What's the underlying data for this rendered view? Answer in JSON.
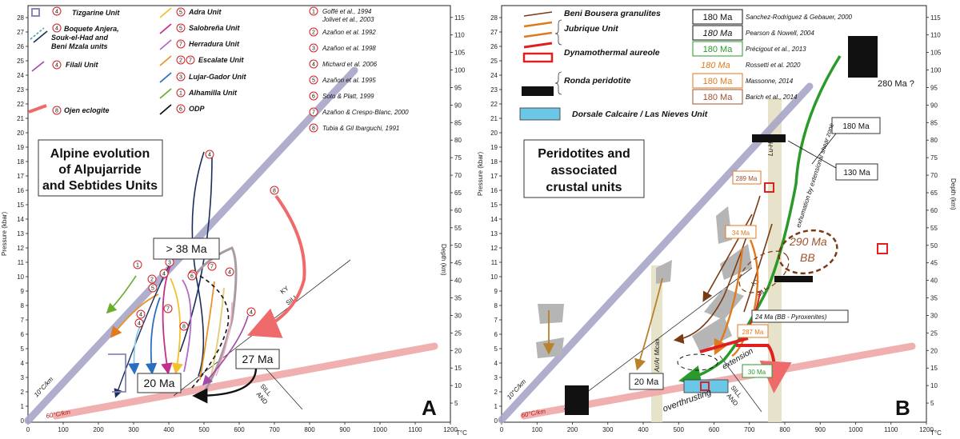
{
  "panel_a": {
    "letter": "A",
    "title_lines": [
      "Alpine evolution",
      "of Alpujarride",
      "and Sebtides Units"
    ],
    "legend": [
      {
        "num": "4",
        "label": "Tizgarine Unit",
        "color": "#8a86b8"
      },
      {
        "num": "4",
        "label": "Boquete Anjera, Souk-el-Had and Beni Mzala units",
        "color": "#4aa3a0"
      },
      {
        "num": "4",
        "label": "Filali Unit",
        "color": "#a24aa8"
      },
      {
        "num": "8",
        "label": "Ojen eclogite",
        "color": "#ef6b6b"
      },
      {
        "num": "5",
        "label": "Adra Unit",
        "color": "#f2c12e"
      },
      {
        "num": "5",
        "label": "Salobreña Unit",
        "color": "#c1308a"
      },
      {
        "num": "7",
        "label": "Herradura Unit",
        "color": "#b06ac9"
      },
      {
        "num": "2",
        "num2": "7",
        "label": "Escalate Unit",
        "color": "#e8952a"
      },
      {
        "num": "3",
        "label": "Lujar-Gador Unit",
        "color": "#2a6fbf"
      },
      {
        "num": "1",
        "label": "Alhamilla Unit",
        "color": "#6aae2e"
      },
      {
        "num": "6",
        "label": "ODP",
        "color": "#111111"
      }
    ],
    "refs": [
      {
        "num": "1",
        "text": "Goffé et al., 1994",
        "text2": "Jolivet et al., 2003"
      },
      {
        "num": "2",
        "text": "Azañon et al. 1992"
      },
      {
        "num": "3",
        "text": "Azañon et al. 1998"
      },
      {
        "num": "4",
        "text": "Michard et al. 2006"
      },
      {
        "num": "5",
        "text": "Azañon et al. 1995"
      },
      {
        "num": "6",
        "text": "Soto & Platt, 1999"
      },
      {
        "num": "7",
        "text": "Azañon & Crespo-Blanc, 2000"
      },
      {
        "num": "8",
        "text": "Tubia & Gil Ibarguchi, 1991"
      }
    ],
    "ages": [
      "> 38 Ma",
      "20 Ma",
      "27 Ma"
    ],
    "labels": {
      "gradient10": "10°C/km",
      "gradient60": "60°C/km",
      "ky_sill": "KY",
      "sill": "SILL",
      "sill_and": "SILL",
      "and": "AND"
    },
    "circle_nums": [
      "4",
      "1",
      "8",
      "3",
      "3",
      "2",
      "5",
      "6",
      "7",
      "4",
      "4",
      "4",
      "8",
      "7",
      "4",
      "4"
    ]
  },
  "panel_b": {
    "letter": "B",
    "title_lines": [
      "Peridotites and",
      "associated",
      "crustal units"
    ],
    "legend": [
      {
        "label": "Beni Bousera granulites",
        "color": "#7a3b14"
      },
      {
        "label": "Jubrique Unit",
        "color": "#e07a1f"
      },
      {
        "label": "Dynamothermal aureole",
        "color": "#e02020"
      },
      {
        "label": "Ronda peridotite",
        "color": "#111111"
      },
      {
        "label": "Dorsale Calcaire / Las Nieves Unit",
        "color": "#6cc6e6"
      }
    ],
    "age_refs": [
      {
        "age": "180 Ma",
        "text": "Sanchez-Rodriguez & Gebauer, 2000",
        "color": "#111111"
      },
      {
        "age": "180 Ma",
        "text": "Pearson & Nowell, 2004",
        "color": "#111111"
      },
      {
        "age": "180 Ma",
        "text": "Précigout et al., 2013",
        "color": "#2a9a2a"
      },
      {
        "age": "180 Ma",
        "text": "Rossetti et al. 2020",
        "color": "#e07a1f"
      },
      {
        "age": "180 Ma",
        "text": "Massonne, 2014",
        "color": "#e07a1f"
      },
      {
        "age": "180 Ma",
        "text": "Barich et al., 2014",
        "color": "#a0522d"
      }
    ],
    "ages": [
      "280 Ma ?",
      "180 Ma",
      "130 Ma",
      "289 Ma",
      "34 Ma",
      "290 Ma",
      "BB",
      "24 Ma (BB - Pyroxenites)",
      "287 Ma",
      "30 Ma",
      "20 Ma"
    ],
    "labels": {
      "exhumation": "exhumation by extensional shear zone",
      "luhf": "Lu-Hf",
      "arar": "Ar/Ar Micas",
      "extension": "extension",
      "overthrusting": "overthrusting",
      "ky": "KY",
      "sill": "SILL",
      "sill2": "SILL",
      "and": "AND",
      "gradient10": "10°C/km",
      "gradient60": "60°C/km"
    }
  },
  "axes": {
    "x_label": "T°C",
    "y_label_left": "Pressure (kbar)",
    "y_label_right": "Depth (km)",
    "x_ticks_a": [
      "0",
      "100",
      "200",
      "300",
      "400",
      "500",
      "600",
      "700",
      "800",
      "900",
      "1000",
      "1100",
      "1200"
    ],
    "x_ticks_b": [
      "0",
      "100",
      "200",
      "300",
      "400",
      "500",
      "600",
      "700",
      "800",
      "900",
      "1000",
      "1100",
      "1200"
    ],
    "p_ticks": [
      "0",
      "1",
      "2",
      "3",
      "4",
      "5",
      "6",
      "7",
      "8",
      "9",
      "10",
      "11",
      "12",
      "13",
      "14",
      "15",
      "16",
      "17",
      "18",
      "19",
      "20",
      "21",
      "22",
      "23",
      "24",
      "25",
      "26",
      "27",
      "28"
    ],
    "depth_ticks": [
      "5",
      "10",
      "15",
      "20",
      "25",
      "30",
      "35",
      "40",
      "45",
      "50",
      "55",
      "60",
      "65",
      "70",
      "75",
      "80",
      "85",
      "90",
      "95",
      "100",
      "105",
      "110",
      "115"
    ]
  }
}
